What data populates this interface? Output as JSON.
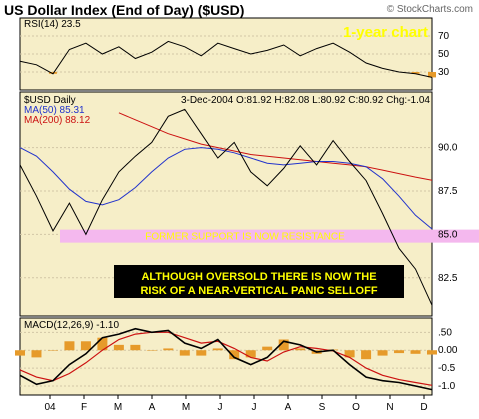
{
  "title": "US Dollar Index (End of Day) ($USD)",
  "watermark": "© StockCharts.com",
  "colors": {
    "panel_bg": "#f6eec8",
    "grid": "#d2c6a6",
    "price": "#000000",
    "ma50": "#2233cc",
    "ma200": "#cc1111",
    "highlight_band": "#f4b8ee",
    "highlight_text": "#ffff00",
    "note_bg": "#000000",
    "note_text": "#ffff00",
    "rsi_fill": "#e69a2a",
    "macd_hist": "#e69a2a",
    "macd_signal": "#cc1111",
    "corner_label": "#ffff00"
  },
  "chart_data": [
    {
      "type": "line",
      "panel": "rsi",
      "title": "RSI(14) 23.5",
      "corner_label": "1-year chart",
      "y_ticks": [
        30,
        50,
        70
      ],
      "ylim": [
        10,
        90
      ],
      "x": [
        0,
        10,
        20,
        30,
        40,
        50,
        60,
        70,
        80,
        90,
        100,
        110,
        120,
        130,
        140,
        150,
        160,
        170,
        180,
        190,
        200,
        210,
        220,
        230,
        240,
        250
      ],
      "values": [
        42,
        38,
        28,
        55,
        62,
        50,
        58,
        45,
        52,
        64,
        58,
        48,
        62,
        56,
        50,
        54,
        60,
        48,
        56,
        62,
        52,
        40,
        34,
        30,
        28,
        24
      ]
    },
    {
      "type": "line",
      "panel": "price",
      "legend": [
        "$USD Daily",
        "MA(50) 85.31",
        "MA(200) 88.12"
      ],
      "info": "3-Dec-2004 O:81.92 H:82.08 L:80.92 C:80.92 Chg:-1.04",
      "y_ticks": [
        82.5,
        85.0,
        87.5,
        90.0
      ],
      "ylim": [
        80.3,
        93.2
      ],
      "annotation_band": {
        "label": "FORMER SUPPORT IS NOW RESISTANCE",
        "y": 84.9
      },
      "note": "ALTHOUGH OVERSOLD THERE IS NOW THE RISK OF A NEAR-VERTICAL PANIC SELLOFF",
      "x": [
        0,
        10,
        20,
        30,
        40,
        50,
        60,
        70,
        80,
        90,
        100,
        110,
        120,
        130,
        140,
        150,
        160,
        170,
        180,
        190,
        200,
        210,
        220,
        230,
        240,
        250
      ],
      "series": [
        {
          "name": "$USD Daily",
          "values": [
            89.0,
            87.2,
            85.2,
            86.8,
            85.0,
            87.0,
            88.6,
            89.5,
            90.3,
            91.8,
            92.2,
            90.8,
            89.4,
            90.3,
            88.6,
            87.8,
            88.8,
            90.1,
            89.0,
            90.4,
            89.2,
            88.1,
            86.2,
            84.2,
            83.0,
            80.92
          ]
        },
        {
          "name": "MA(50)",
          "values": [
            90.0,
            89.5,
            88.6,
            87.6,
            86.9,
            86.7,
            87.0,
            87.7,
            88.6,
            89.4,
            89.9,
            90.0,
            89.9,
            89.7,
            89.4,
            89.1,
            89.0,
            89.1,
            89.2,
            89.2,
            89.1,
            88.9,
            88.2,
            87.2,
            86.1,
            85.31
          ]
        },
        {
          "name": "MA(200)",
          "values": [
            null,
            null,
            null,
            null,
            null,
            null,
            92.0,
            91.6,
            91.2,
            90.8,
            90.5,
            90.2,
            90.0,
            89.8,
            89.6,
            89.5,
            89.4,
            89.3,
            89.2,
            89.1,
            89.0,
            88.9,
            88.7,
            88.5,
            88.3,
            88.12
          ]
        }
      ]
    },
    {
      "type": "line",
      "panel": "macd",
      "title": "MACD(12,26,9) -1.10",
      "y_ticks": [
        0.5,
        0.0,
        -0.5,
        -1.0
      ],
      "ylim": [
        -1.25,
        0.9
      ],
      "x_labels": [
        "04",
        "F",
        "M",
        "A",
        "M",
        "J",
        "J",
        "A",
        "S",
        "O",
        "N",
        "D"
      ],
      "x": [
        0,
        10,
        20,
        30,
        40,
        50,
        60,
        70,
        80,
        90,
        100,
        110,
        120,
        130,
        140,
        150,
        160,
        170,
        180,
        190,
        200,
        210,
        220,
        230,
        240,
        250
      ],
      "series": [
        {
          "name": "MACD",
          "values": [
            -0.7,
            -0.95,
            -0.85,
            -0.4,
            -0.1,
            0.35,
            0.45,
            0.6,
            0.5,
            0.55,
            0.2,
            0.05,
            0.3,
            -0.2,
            -0.4,
            -0.2,
            0.25,
            0.15,
            -0.05,
            0.0,
            -0.4,
            -0.75,
            -0.85,
            -0.9,
            -1.0,
            -1.1
          ]
        },
        {
          "name": "Signal",
          "values": [
            -0.55,
            -0.75,
            -0.85,
            -0.65,
            -0.35,
            0.0,
            0.3,
            0.45,
            0.5,
            0.5,
            0.35,
            0.2,
            0.25,
            0.05,
            -0.2,
            -0.3,
            -0.05,
            0.1,
            0.05,
            -0.02,
            -0.2,
            -0.5,
            -0.7,
            -0.82,
            -0.9,
            -0.98
          ]
        }
      ]
    }
  ]
}
